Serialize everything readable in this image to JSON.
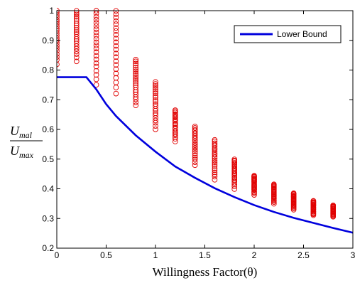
{
  "chart_data": {
    "type": "scatter",
    "xlabel": "Willingness Factor(θ)",
    "ylabel": {
      "num_main": "U",
      "num_sub": "mal",
      "den_main": "U",
      "den_sub": "max"
    },
    "xlim": [
      0,
      3
    ],
    "ylim": [
      0.2,
      1.0
    ],
    "xticks": [
      "0",
      "0.5",
      "1",
      "1.5",
      "2",
      "2.5",
      "3"
    ],
    "yticks": [
      "0.2",
      "0.3",
      "0.4",
      "0.5",
      "0.6",
      "0.7",
      "0.8",
      "0.9",
      "1"
    ],
    "grid": false,
    "legend_position": "top-right",
    "legend": [
      {
        "label": "Lower Bound",
        "color": "#0000dd"
      }
    ],
    "series": [
      {
        "kind": "line",
        "name": "Lower Bound",
        "color": "#0000dd",
        "x": [
          0,
          0.3,
          0.4,
          0.5,
          0.6,
          0.8,
          1.0,
          1.2,
          1.4,
          1.6,
          1.8,
          2.0,
          2.2,
          2.4,
          2.6,
          2.8,
          3.0
        ],
        "y": [
          0.776,
          0.776,
          0.735,
          0.685,
          0.645,
          0.58,
          0.525,
          0.475,
          0.437,
          0.402,
          0.372,
          0.345,
          0.322,
          0.302,
          0.285,
          0.268,
          0.252
        ]
      },
      {
        "kind": "scatter",
        "color": "#e00000",
        "columns": [
          {
            "x": 0.0,
            "ymin": 0.82,
            "ymax": 1.0
          },
          {
            "x": 0.2,
            "ymin": 0.83,
            "ymax": 1.0
          },
          {
            "x": 0.4,
            "ymin": 0.75,
            "ymax": 1.0
          },
          {
            "x": 0.6,
            "ymin": 0.72,
            "ymax": 1.0
          },
          {
            "x": 0.8,
            "ymin": 0.68,
            "ymax": 0.835
          },
          {
            "x": 1.0,
            "ymin": 0.6,
            "ymax": 0.76
          },
          {
            "x": 1.2,
            "ymin": 0.56,
            "ymax": 0.665
          },
          {
            "x": 1.4,
            "ymin": 0.48,
            "ymax": 0.61
          },
          {
            "x": 1.6,
            "ymin": 0.43,
            "ymax": 0.565
          },
          {
            "x": 1.8,
            "ymin": 0.4,
            "ymax": 0.5
          },
          {
            "x": 2.0,
            "ymin": 0.38,
            "ymax": 0.445
          },
          {
            "x": 2.2,
            "ymin": 0.35,
            "ymax": 0.415
          },
          {
            "x": 2.4,
            "ymin": 0.33,
            "ymax": 0.385
          },
          {
            "x": 2.6,
            "ymin": 0.31,
            "ymax": 0.36
          },
          {
            "x": 2.8,
            "ymin": 0.305,
            "ymax": 0.345
          }
        ]
      }
    ]
  }
}
